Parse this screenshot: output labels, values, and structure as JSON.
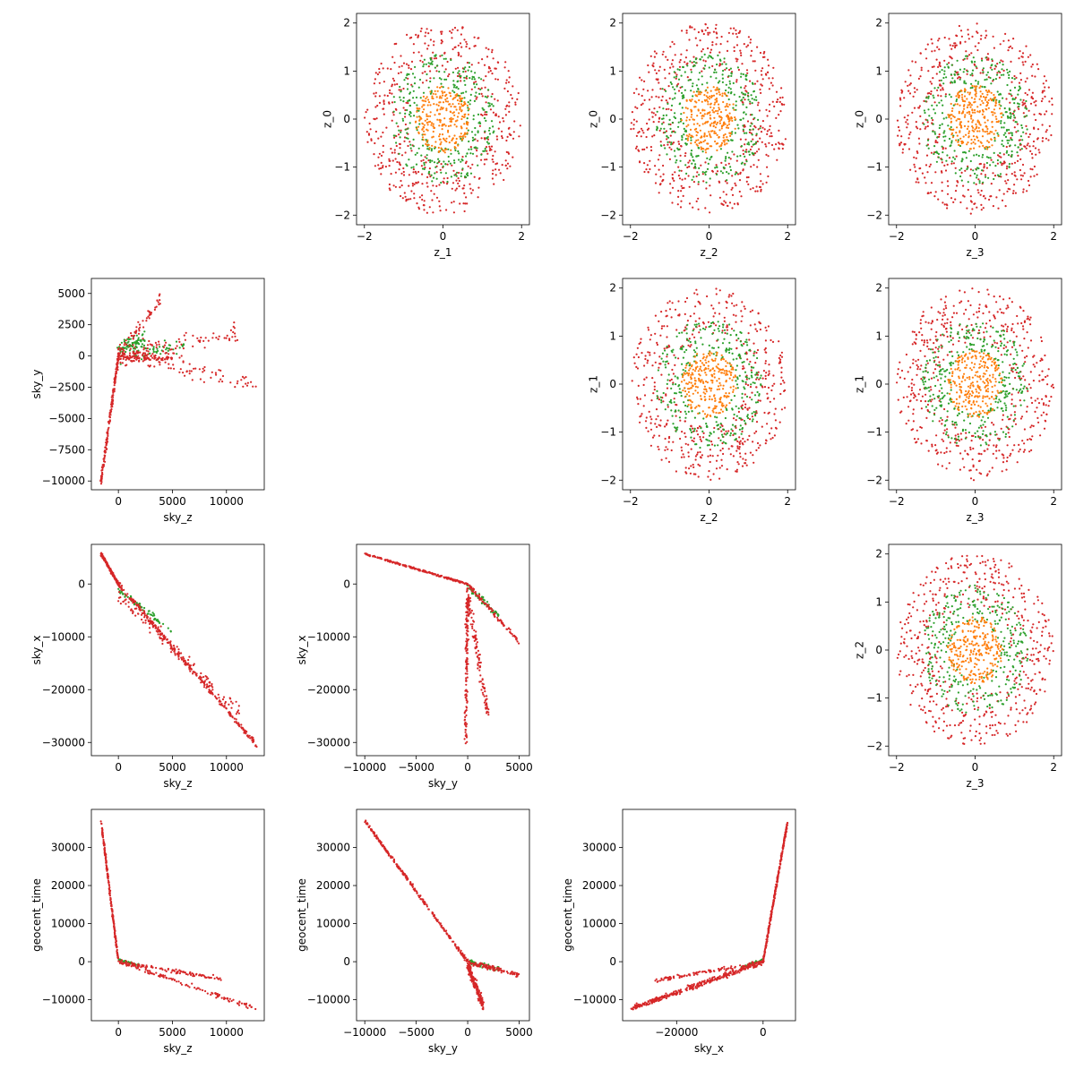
{
  "chart_data": [
    {
      "type": "scatter",
      "row": 0,
      "col": 1,
      "xlabel": "z_1",
      "ylabel": "z_0",
      "xlim": [
        -2.2,
        2.2
      ],
      "ylim": [
        -2.2,
        2.2
      ],
      "xticks": [
        -2,
        0,
        2
      ],
      "yticks": [
        -2,
        -1,
        0,
        1,
        2
      ],
      "tick_labels_x": [
        "−2",
        "0",
        "2"
      ],
      "tick_labels_y": [
        "−2",
        "−1",
        "0",
        "1",
        "2"
      ],
      "series": [
        {
          "color": "#d62728",
          "shape": "ring",
          "r_min": 0.9,
          "r_max": 2.0,
          "count": 520
        },
        {
          "color": "#2ca02c",
          "shape": "ring",
          "r_min": 0.6,
          "r_max": 1.35,
          "count": 320
        },
        {
          "color": "#ff7f0e",
          "shape": "disk",
          "r_min": 0.0,
          "r_max": 0.7,
          "count": 260
        }
      ]
    },
    {
      "type": "scatter",
      "row": 0,
      "col": 2,
      "xlabel": "z_2",
      "ylabel": "z_0",
      "xlim": [
        -2.2,
        2.2
      ],
      "ylim": [
        -2.2,
        2.2
      ],
      "xticks": [
        -2,
        0,
        2
      ],
      "yticks": [
        -2,
        -1,
        0,
        1,
        2
      ],
      "tick_labels_x": [
        "−2",
        "0",
        "2"
      ],
      "tick_labels_y": [
        "−2",
        "−1",
        "0",
        "1",
        "2"
      ],
      "series": [
        {
          "color": "#d62728",
          "shape": "ring",
          "r_min": 0.9,
          "r_max": 2.0,
          "count": 520
        },
        {
          "color": "#2ca02c",
          "shape": "ring",
          "r_min": 0.6,
          "r_max": 1.35,
          "count": 320
        },
        {
          "color": "#ff7f0e",
          "shape": "disk",
          "r_min": 0.0,
          "r_max": 0.7,
          "count": 260
        }
      ]
    },
    {
      "type": "scatter",
      "row": 0,
      "col": 3,
      "xlabel": "z_3",
      "ylabel": "z_0",
      "xlim": [
        -2.2,
        2.2
      ],
      "ylim": [
        -2.2,
        2.2
      ],
      "xticks": [
        -2,
        0,
        2
      ],
      "yticks": [
        -2,
        -1,
        0,
        1,
        2
      ],
      "tick_labels_x": [
        "−2",
        "0",
        "2"
      ],
      "tick_labels_y": [
        "−2",
        "−1",
        "0",
        "1",
        "2"
      ],
      "series": [
        {
          "color": "#d62728",
          "shape": "ring",
          "r_min": 0.9,
          "r_max": 2.0,
          "count": 520
        },
        {
          "color": "#2ca02c",
          "shape": "ring",
          "r_min": 0.6,
          "r_max": 1.35,
          "count": 320
        },
        {
          "color": "#ff7f0e",
          "shape": "disk",
          "r_min": 0.0,
          "r_max": 0.7,
          "count": 260
        }
      ]
    },
    {
      "type": "scatter",
      "row": 1,
      "col": 0,
      "xlabel": "sky_z",
      "ylabel": "sky_y",
      "xlim": [
        -2500,
        13500
      ],
      "ylim": [
        -10700,
        6200
      ],
      "xticks": [
        0,
        5000,
        10000
      ],
      "yticks": [
        -10000,
        -7500,
        -5000,
        -2500,
        0,
        2500,
        5000
      ],
      "tick_labels_x": [
        "0",
        "5000",
        "10000"
      ],
      "tick_labels_y": [
        "−10000",
        "−7500",
        "−5000",
        "−2500",
        "0",
        "2500",
        "5000"
      ],
      "series": [
        {
          "color": "#2ca02c",
          "segments": [
            [
              [
                0,
                500
              ],
              [
                2500,
                1500
              ],
              80,
              500
            ],
            [
              [
                300,
                0
              ],
              [
                6000,
                800
              ],
              60,
              600
            ]
          ]
        },
        {
          "color": "#d62728",
          "segments": [
            [
              [
                -1600,
                -10000
              ],
              [
                0,
                0
              ],
              180,
              250
            ],
            [
              [
                0,
                0
              ],
              [
                12800,
                -2100
              ],
              90,
              700
            ],
            [
              [
                0,
                0
              ],
              [
                11000,
                1800
              ],
              90,
              800
            ],
            [
              [
                0,
                200
              ],
              [
                4000,
                4500
              ],
              60,
              500
            ],
            [
              [
                0,
                0
              ],
              [
                5000,
                -200
              ],
              90,
              300
            ]
          ]
        }
      ]
    },
    {
      "type": "scatter",
      "row": 1,
      "col": 2,
      "xlabel": "z_2",
      "ylabel": "z_1",
      "xlim": [
        -2.2,
        2.2
      ],
      "ylim": [
        -2.2,
        2.2
      ],
      "xticks": [
        -2,
        0,
        2
      ],
      "yticks": [
        -2,
        -1,
        0,
        1,
        2
      ],
      "tick_labels_x": [
        "−2",
        "0",
        "2"
      ],
      "tick_labels_y": [
        "−2",
        "−1",
        "0",
        "1",
        "2"
      ],
      "series": [
        {
          "color": "#d62728",
          "shape": "ring",
          "r_min": 0.9,
          "r_max": 2.0,
          "count": 520
        },
        {
          "color": "#2ca02c",
          "shape": "ring",
          "r_min": 0.6,
          "r_max": 1.35,
          "count": 320
        },
        {
          "color": "#ff7f0e",
          "shape": "disk",
          "r_min": 0.0,
          "r_max": 0.7,
          "count": 260
        }
      ]
    },
    {
      "type": "scatter",
      "row": 1,
      "col": 3,
      "xlabel": "z_3",
      "ylabel": "z_1",
      "xlim": [
        -2.2,
        2.2
      ],
      "ylim": [
        -2.2,
        2.2
      ],
      "xticks": [
        -2,
        0,
        2
      ],
      "yticks": [
        -2,
        -1,
        0,
        1,
        2
      ],
      "tick_labels_x": [
        "−2",
        "0",
        "2"
      ],
      "tick_labels_y": [
        "−2",
        "−1",
        "0",
        "1",
        "2"
      ],
      "series": [
        {
          "color": "#d62728",
          "shape": "ring",
          "r_min": 0.9,
          "r_max": 2.0,
          "count": 520
        },
        {
          "color": "#2ca02c",
          "shape": "ring",
          "r_min": 0.6,
          "r_max": 1.35,
          "count": 320
        },
        {
          "color": "#ff7f0e",
          "shape": "disk",
          "r_min": 0.0,
          "r_max": 0.7,
          "count": 260
        }
      ]
    },
    {
      "type": "scatter",
      "row": 2,
      "col": 0,
      "xlabel": "sky_z",
      "ylabel": "sky_x",
      "xlim": [
        -2500,
        13500
      ],
      "ylim": [
        -32500,
        7500
      ],
      "xticks": [
        0,
        5000,
        10000
      ],
      "yticks": [
        -30000,
        -20000,
        -10000,
        0
      ],
      "tick_labels_x": [
        "0",
        "5000",
        "10000"
      ],
      "tick_labels_y": [
        "−30000",
        "−20000",
        "−10000",
        "0"
      ],
      "series": [
        {
          "color": "#2ca02c",
          "segments": [
            [
              [
                0,
                -1000
              ],
              [
                5000,
                -9000
              ],
              60,
              500
            ]
          ]
        },
        {
          "color": "#d62728",
          "segments": [
            [
              [
                -1600,
                5700
              ],
              [
                0,
                0
              ],
              180,
              300
            ],
            [
              [
                0,
                0
              ],
              [
                12800,
                -30500
              ],
              260,
              500
            ],
            [
              [
                0,
                -2000
              ],
              [
                11500,
                -25000
              ],
              120,
              1400
            ]
          ]
        }
      ]
    },
    {
      "type": "scatter",
      "row": 2,
      "col": 1,
      "xlabel": "sky_y",
      "ylabel": "sky_x",
      "xlim": [
        -10800,
        6000
      ],
      "ylim": [
        -32500,
        7500
      ],
      "xticks": [
        -10000,
        -5000,
        0,
        5000
      ],
      "yticks": [
        -30000,
        -20000,
        -10000,
        0
      ],
      "tick_labels_x": [
        "−10000",
        "−5000",
        "0",
        "5000"
      ],
      "tick_labels_y": [
        "−30000",
        "−20000",
        "−10000",
        "0"
      ],
      "series": [
        {
          "color": "#2ca02c",
          "segments": [
            [
              [
                0,
                -500
              ],
              [
                3000,
                -6000
              ],
              60,
              600
            ]
          ]
        },
        {
          "color": "#d62728",
          "segments": [
            [
              [
                -10000,
                5700
              ],
              [
                0,
                0
              ],
              220,
              150
            ],
            [
              [
                0,
                0
              ],
              [
                5000,
                -11000
              ],
              90,
              500
            ],
            [
              [
                0,
                -1000
              ],
              [
                -200,
                -30000
              ],
              140,
              1200
            ],
            [
              [
                0,
                -2000
              ],
              [
                2000,
                -25000
              ],
              110,
              1400
            ]
          ]
        }
      ]
    },
    {
      "type": "scatter",
      "row": 2,
      "col": 3,
      "xlabel": "z_3",
      "ylabel": "z_2",
      "xlim": [
        -2.2,
        2.2
      ],
      "ylim": [
        -2.2,
        2.2
      ],
      "xticks": [
        -2,
        0,
        2
      ],
      "yticks": [
        -2,
        -1,
        0,
        1,
        2
      ],
      "tick_labels_x": [
        "−2",
        "0",
        "2"
      ],
      "tick_labels_y": [
        "−2",
        "−1",
        "0",
        "1",
        "2"
      ],
      "series": [
        {
          "color": "#d62728",
          "shape": "ring",
          "r_min": 0.9,
          "r_max": 2.0,
          "count": 520
        },
        {
          "color": "#2ca02c",
          "shape": "ring",
          "r_min": 0.6,
          "r_max": 1.35,
          "count": 320
        },
        {
          "color": "#ff7f0e",
          "shape": "disk",
          "r_min": 0.0,
          "r_max": 0.7,
          "count": 260
        }
      ]
    },
    {
      "type": "scatter",
      "row": 3,
      "col": 0,
      "xlabel": "sky_z",
      "ylabel": "geocent_time",
      "xlim": [
        -2500,
        13500
      ],
      "ylim": [
        -15500,
        40000
      ],
      "xticks": [
        0,
        5000,
        10000
      ],
      "yticks": [
        -10000,
        0,
        10000,
        20000,
        30000
      ],
      "tick_labels_x": [
        "0",
        "5000",
        "10000"
      ],
      "tick_labels_y": [
        "−10000",
        "0",
        "10000",
        "20000",
        "30000"
      ],
      "series": [
        {
          "color": "#2ca02c",
          "segments": [
            [
              [
                0,
                500
              ],
              [
                2000,
                -1000
              ],
              40,
              300
            ]
          ]
        },
        {
          "color": "#d62728",
          "segments": [
            [
              [
                -1600,
                37000
              ],
              [
                0,
                0
              ],
              220,
              500
            ],
            [
              [
                0,
                0
              ],
              [
                12800,
                -12300
              ],
              120,
              600
            ],
            [
              [
                0,
                0
              ],
              [
                9500,
                -4500
              ],
              110,
              500
            ]
          ]
        }
      ]
    },
    {
      "type": "scatter",
      "row": 3,
      "col": 1,
      "xlabel": "sky_y",
      "ylabel": "geocent_time",
      "xlim": [
        -10800,
        6000
      ],
      "ylim": [
        -15500,
        40000
      ],
      "xticks": [
        -10000,
        -5000,
        0,
        5000
      ],
      "yticks": [
        -10000,
        0,
        10000,
        20000,
        30000
      ],
      "tick_labels_x": [
        "−10000",
        "−5000",
        "0",
        "5000"
      ],
      "tick_labels_y": [
        "−10000",
        "0",
        "10000",
        "20000",
        "30000"
      ],
      "series": [
        {
          "color": "#2ca02c",
          "segments": [
            [
              [
                0,
                0
              ],
              [
                3000,
                -2000
              ],
              50,
              600
            ]
          ]
        },
        {
          "color": "#d62728",
          "segments": [
            [
              [
                -10000,
                37000
              ],
              [
                0,
                0
              ],
              280,
              450
            ],
            [
              [
                0,
                0
              ],
              [
                5000,
                -3500
              ],
              100,
              600
            ],
            [
              [
                0,
                -1000
              ],
              [
                1500,
                -11500
              ],
              180,
              1400
            ]
          ]
        }
      ]
    },
    {
      "type": "scatter",
      "row": 3,
      "col": 2,
      "xlabel": "sky_x",
      "ylabel": "geocent_time",
      "xlim": [
        -32500,
        7500
      ],
      "ylim": [
        -15500,
        40000
      ],
      "xticks": [
        -20000,
        0
      ],
      "yticks": [
        -10000,
        0,
        10000,
        20000,
        30000
      ],
      "tick_labels_x": [
        "−20000",
        "0"
      ],
      "tick_labels_y": [
        "−10000",
        "0",
        "10000",
        "20000",
        "30000"
      ],
      "series": [
        {
          "color": "#2ca02c",
          "segments": [
            [
              [
                0,
                500
              ],
              [
                -5000,
                -1500
              ],
              40,
              300
            ]
          ]
        },
        {
          "color": "#d62728",
          "segments": [
            [
              [
                0,
                0
              ],
              [
                5700,
                37000
              ],
              300,
              500
            ],
            [
              [
                0,
                0
              ],
              [
                -30500,
                -12300
              ],
              350,
              700
            ],
            [
              [
                0,
                0
              ],
              [
                -25000,
                -5000
              ],
              100,
              500
            ]
          ]
        }
      ]
    }
  ]
}
